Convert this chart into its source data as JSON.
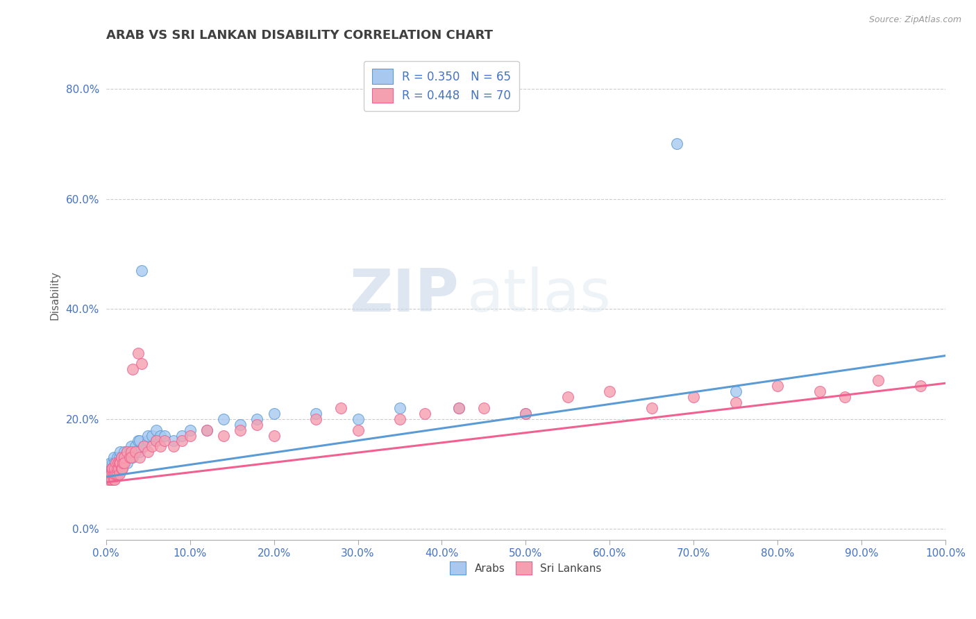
{
  "title": "ARAB VS SRI LANKAN DISABILITY CORRELATION CHART",
  "source": "Source: ZipAtlas.com",
  "ylabel": "Disability",
  "xlabel": "",
  "xlim": [
    0.0,
    1.0
  ],
  "ylim": [
    -0.02,
    0.87
  ],
  "xticks": [
    0.0,
    0.1,
    0.2,
    0.3,
    0.4,
    0.5,
    0.6,
    0.7,
    0.8,
    0.9,
    1.0
  ],
  "yticks": [
    0.0,
    0.2,
    0.4,
    0.6,
    0.8
  ],
  "arab_color": "#a8c8f0",
  "sri_color": "#f4a0b0",
  "arab_line_color": "#5b9bd5",
  "sri_line_color": "#f06090",
  "arab_R": 0.35,
  "arab_N": 65,
  "sri_R": 0.448,
  "sri_N": 70,
  "watermark_zip": "ZIP",
  "watermark_atlas": "atlas",
  "background_color": "#ffffff",
  "grid_color": "#cccccc",
  "legend_R_color": "#4472c4",
  "title_color": "#404040",
  "axis_label_color": "#606060",
  "arab_line_y0": 0.095,
  "arab_line_y1": 0.315,
  "sri_line_y0": 0.085,
  "sri_line_y1": 0.265,
  "arab_scatter_x": [
    0.005,
    0.005,
    0.005,
    0.007,
    0.007,
    0.008,
    0.008,
    0.009,
    0.009,
    0.01,
    0.01,
    0.01,
    0.012,
    0.012,
    0.013,
    0.013,
    0.014,
    0.015,
    0.015,
    0.016,
    0.016,
    0.017,
    0.017,
    0.018,
    0.018,
    0.019,
    0.02,
    0.02,
    0.022,
    0.022,
    0.025,
    0.025,
    0.028,
    0.03,
    0.03,
    0.032,
    0.035,
    0.035,
    0.038,
    0.04,
    0.04,
    0.042,
    0.045,
    0.05,
    0.05,
    0.055,
    0.06,
    0.06,
    0.065,
    0.07,
    0.08,
    0.09,
    0.1,
    0.12,
    0.14,
    0.16,
    0.18,
    0.2,
    0.25,
    0.3,
    0.35,
    0.42,
    0.5,
    0.68,
    0.75
  ],
  "arab_scatter_y": [
    0.1,
    0.11,
    0.12,
    0.1,
    0.11,
    0.1,
    0.12,
    0.11,
    0.13,
    0.1,
    0.11,
    0.12,
    0.1,
    0.12,
    0.11,
    0.13,
    0.12,
    0.1,
    0.11,
    0.12,
    0.13,
    0.11,
    0.14,
    0.12,
    0.13,
    0.11,
    0.13,
    0.12,
    0.13,
    0.14,
    0.14,
    0.12,
    0.14,
    0.14,
    0.15,
    0.13,
    0.15,
    0.14,
    0.16,
    0.16,
    0.14,
    0.47,
    0.15,
    0.16,
    0.17,
    0.17,
    0.16,
    0.18,
    0.17,
    0.17,
    0.16,
    0.17,
    0.18,
    0.18,
    0.2,
    0.19,
    0.2,
    0.21,
    0.21,
    0.2,
    0.22,
    0.22,
    0.21,
    0.7,
    0.25
  ],
  "sri_scatter_x": [
    0.003,
    0.004,
    0.005,
    0.005,
    0.006,
    0.007,
    0.007,
    0.008,
    0.008,
    0.009,
    0.009,
    0.01,
    0.01,
    0.01,
    0.012,
    0.012,
    0.013,
    0.013,
    0.014,
    0.015,
    0.016,
    0.016,
    0.017,
    0.018,
    0.018,
    0.019,
    0.02,
    0.022,
    0.022,
    0.025,
    0.028,
    0.03,
    0.03,
    0.032,
    0.035,
    0.038,
    0.04,
    0.042,
    0.045,
    0.05,
    0.055,
    0.06,
    0.065,
    0.07,
    0.08,
    0.09,
    0.1,
    0.12,
    0.14,
    0.16,
    0.18,
    0.2,
    0.25,
    0.28,
    0.3,
    0.35,
    0.38,
    0.42,
    0.45,
    0.5,
    0.55,
    0.6,
    0.65,
    0.7,
    0.75,
    0.8,
    0.85,
    0.88,
    0.92,
    0.97
  ],
  "sri_scatter_y": [
    0.09,
    0.1,
    0.09,
    0.1,
    0.1,
    0.09,
    0.11,
    0.1,
    0.11,
    0.09,
    0.1,
    0.09,
    0.1,
    0.11,
    0.1,
    0.12,
    0.1,
    0.11,
    0.12,
    0.11,
    0.12,
    0.1,
    0.12,
    0.11,
    0.13,
    0.11,
    0.12,
    0.13,
    0.12,
    0.14,
    0.13,
    0.14,
    0.13,
    0.29,
    0.14,
    0.32,
    0.13,
    0.3,
    0.15,
    0.14,
    0.15,
    0.16,
    0.15,
    0.16,
    0.15,
    0.16,
    0.17,
    0.18,
    0.17,
    0.18,
    0.19,
    0.17,
    0.2,
    0.22,
    0.18,
    0.2,
    0.21,
    0.22,
    0.22,
    0.21,
    0.24,
    0.25,
    0.22,
    0.24,
    0.23,
    0.26,
    0.25,
    0.24,
    0.27,
    0.26
  ]
}
